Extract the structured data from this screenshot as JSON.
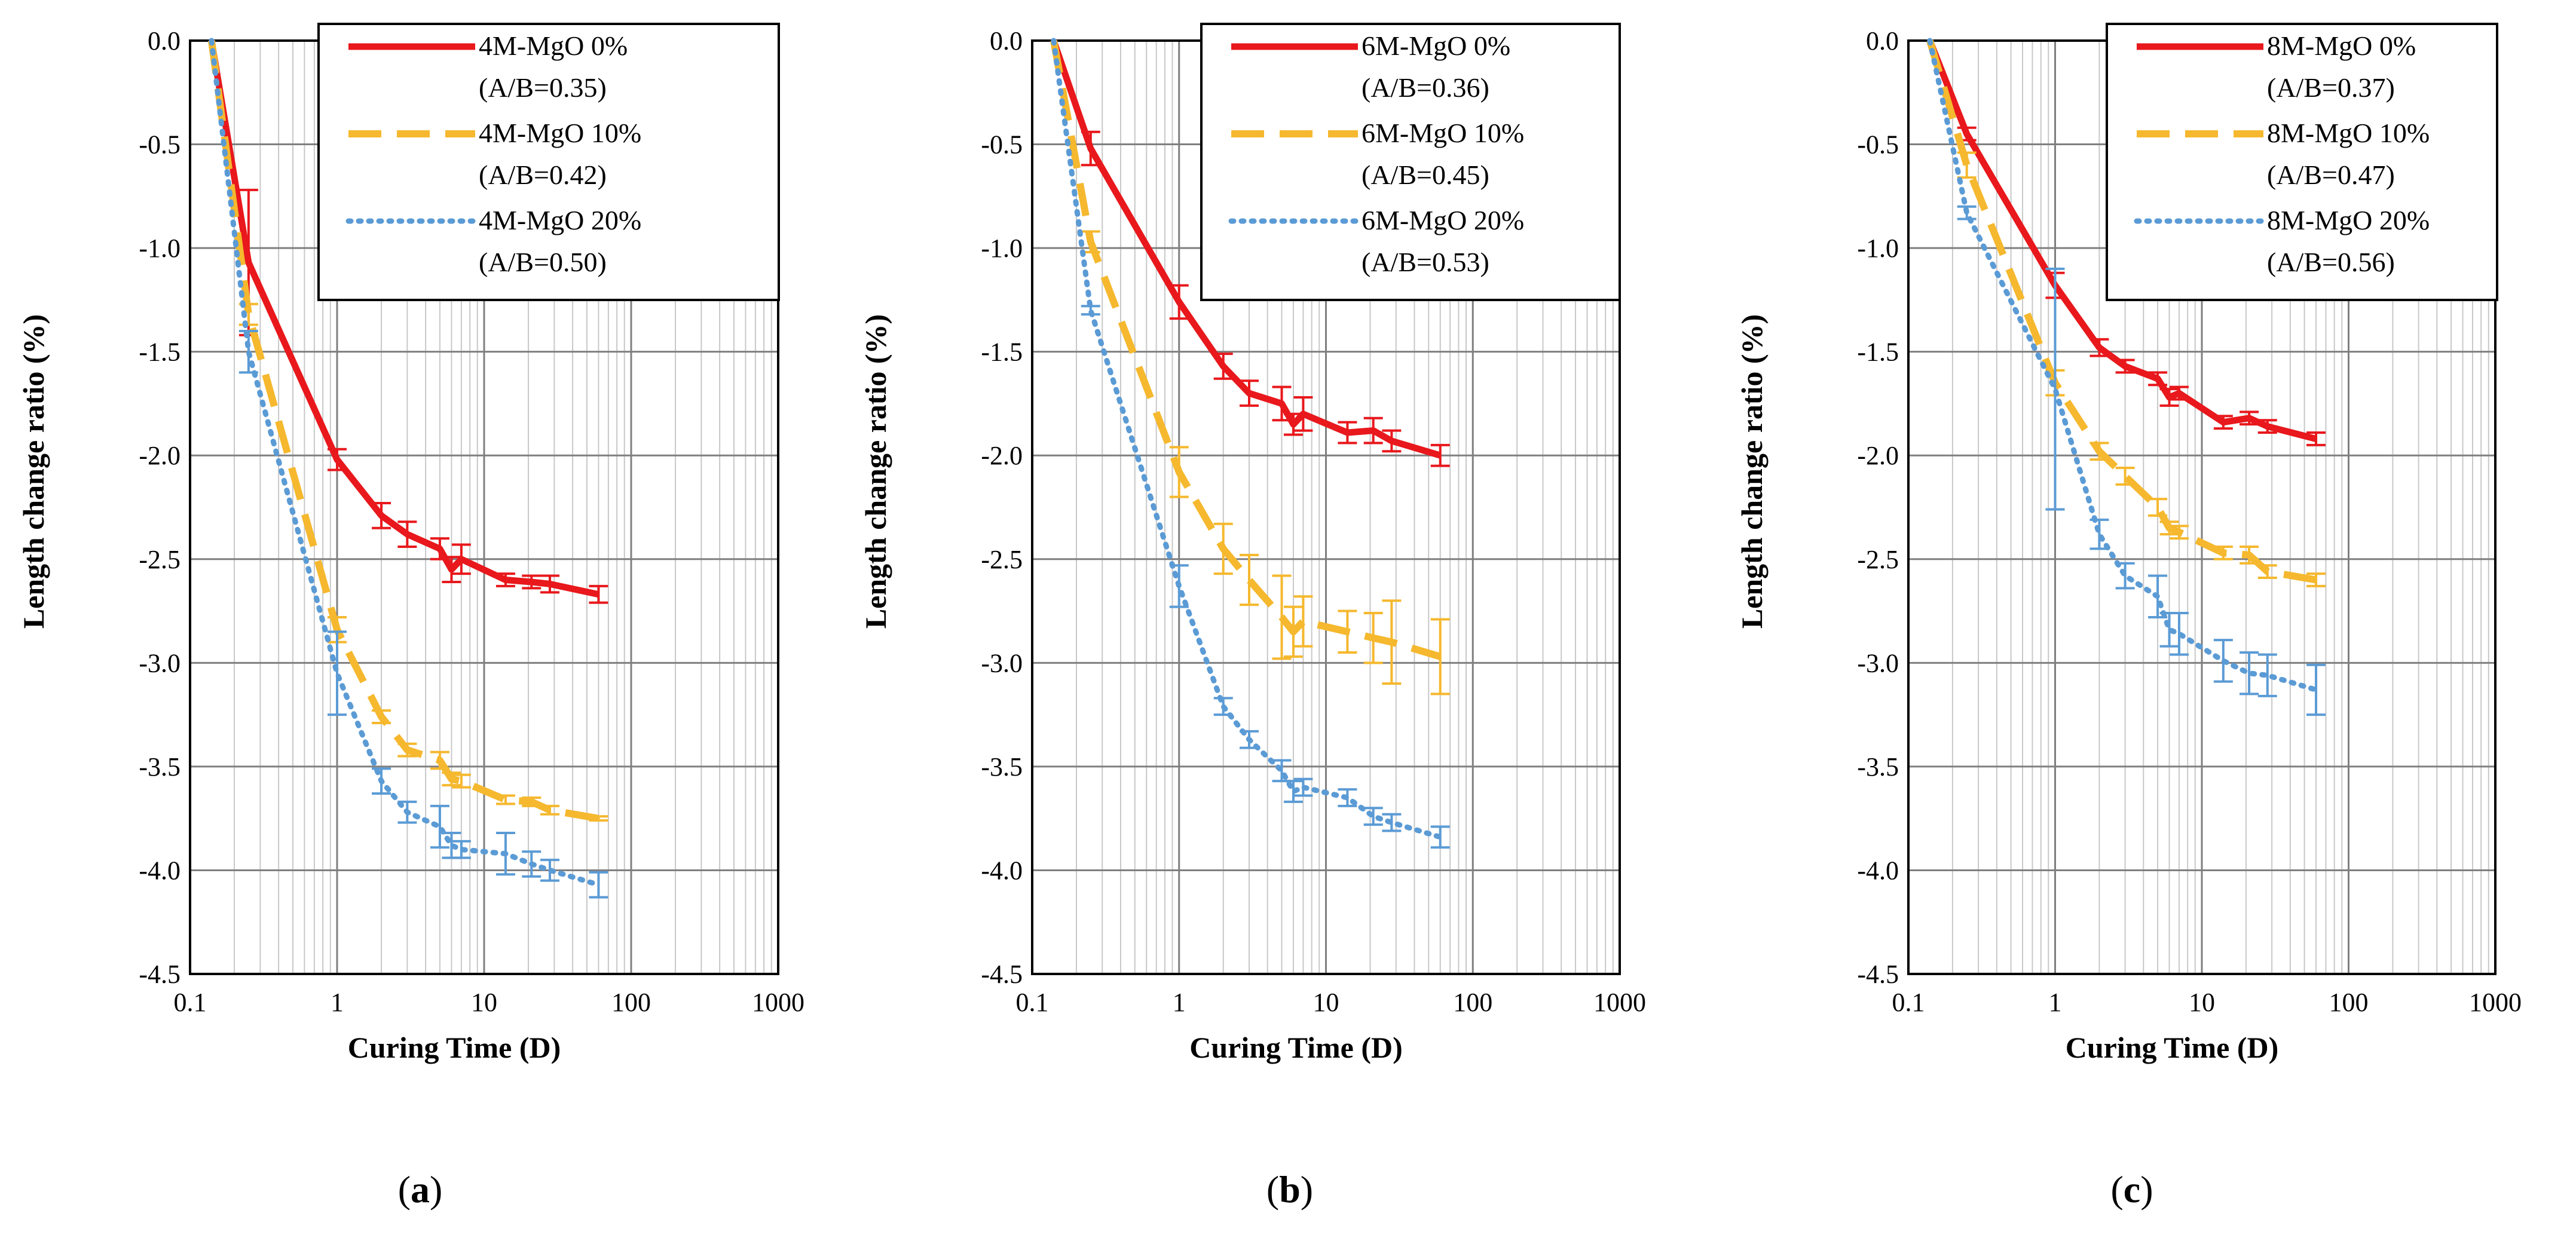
{
  "figure": {
    "panels": [
      {
        "caption": "a",
        "chart_data": {
          "type": "line",
          "xscale": "log",
          "xlim": [
            0.1,
            1000
          ],
          "ylim": [
            -4.5,
            0.0
          ],
          "xticks": [
            "0.1",
            "1",
            "10",
            "100",
            "1000"
          ],
          "yticks": [
            "0.0",
            "-0.5",
            "-1.0",
            "-1.5",
            "-2.0",
            "-2.5",
            "-3.0",
            "-3.5",
            "-4.0",
            "-4.5"
          ],
          "xlabel": "Curing Time (D)",
          "ylabel": "Length change ratio (%)",
          "grid": true,
          "legend_position": "top-right",
          "series": [
            {
              "name": "4M-MgO 0%",
              "sub": "(A/B=0.35)",
              "color": "#e8181c",
              "style": "solid",
              "x": [
                0.14,
                0.25,
                1,
                2,
                3,
                5,
                6,
                7,
                14,
                21,
                28,
                60
              ],
              "y": [
                0.0,
                -1.07,
                -2.02,
                -2.29,
                -2.38,
                -2.45,
                -2.55,
                -2.5,
                -2.6,
                -2.61,
                -2.62,
                -2.67
              ],
              "err": [
                0,
                0.35,
                0.05,
                0.06,
                0.06,
                0.05,
                0.06,
                0.07,
                0.03,
                0.03,
                0.04,
                0.04
              ]
            },
            {
              "name": "4M-MgO 10%",
              "sub": "(A/B=0.42)",
              "color": "#f5b82e",
              "style": "dashed",
              "x": [
                0.14,
                0.25,
                1,
                2,
                3,
                5,
                6,
                7,
                14,
                21,
                28,
                60
              ],
              "y": [
                0.0,
                -1.32,
                -2.84,
                -3.26,
                -3.42,
                -3.47,
                -3.56,
                -3.57,
                -3.66,
                -3.67,
                -3.71,
                -3.75
              ],
              "err": [
                0,
                0.05,
                0.06,
                0.03,
                0.03,
                0.04,
                0.03,
                0.03,
                0.02,
                0.02,
                0.02,
                0.01
              ]
            },
            {
              "name": "4M-MgO 20%",
              "sub": "(A/B=0.50)",
              "color": "#5b9bd5",
              "style": "dotted",
              "x": [
                0.14,
                0.25,
                1,
                2,
                3,
                5,
                6,
                7,
                14,
                21,
                28,
                60
              ],
              "y": [
                0.0,
                -1.5,
                -3.05,
                -3.57,
                -3.72,
                -3.79,
                -3.88,
                -3.9,
                -3.92,
                -3.97,
                -4.0,
                -4.07
              ],
              "err": [
                0,
                0.1,
                0.2,
                0.06,
                0.05,
                0.1,
                0.06,
                0.04,
                0.1,
                0.06,
                0.05,
                0.06
              ]
            }
          ]
        }
      },
      {
        "caption": "b",
        "chart_data": {
          "type": "line",
          "xscale": "log",
          "xlim": [
            0.1,
            1000
          ],
          "ylim": [
            -4.5,
            0.0
          ],
          "xticks": [
            "0.1",
            "1",
            "10",
            "100",
            "1000"
          ],
          "yticks": [
            "0.0",
            "-0.5",
            "-1.0",
            "-1.5",
            "-2.0",
            "-2.5",
            "-3.0",
            "-3.5",
            "-4.0",
            "-4.5"
          ],
          "xlabel": "Curing Time (D)",
          "ylabel": "Length change ratio (%)",
          "grid": true,
          "legend_position": "top-right",
          "series": [
            {
              "name": "6M-MgO 0%",
              "sub": "(A/B=0.36)",
              "color": "#e8181c",
              "style": "solid",
              "x": [
                0.14,
                0.25,
                1,
                2,
                3,
                5,
                6,
                7,
                14,
                21,
                28,
                60
              ],
              "y": [
                0.0,
                -0.52,
                -1.26,
                -1.57,
                -1.7,
                -1.75,
                -1.85,
                -1.8,
                -1.89,
                -1.88,
                -1.93,
                -2.0
              ],
              "err": [
                0,
                0.08,
                0.08,
                0.06,
                0.06,
                0.08,
                0.05,
                0.08,
                0.05,
                0.06,
                0.05,
                0.05
              ]
            },
            {
              "name": "6M-MgO 10%",
              "sub": "(A/B=0.45)",
              "color": "#f5b82e",
              "style": "dashed",
              "x": [
                0.14,
                0.25,
                1,
                2,
                3,
                5,
                6,
                7,
                14,
                21,
                28,
                60
              ],
              "y": [
                0.0,
                -0.97,
                -2.08,
                -2.45,
                -2.6,
                -2.78,
                -2.85,
                -2.8,
                -2.85,
                -2.88,
                -2.9,
                -2.97
              ],
              "err": [
                0,
                0.05,
                0.12,
                0.12,
                0.12,
                0.2,
                0.12,
                0.12,
                0.1,
                0.12,
                0.2,
                0.18
              ]
            },
            {
              "name": "6M-MgO 20%",
              "sub": "(A/B=0.53)",
              "color": "#5b9bd5",
              "style": "dotted",
              "x": [
                0.14,
                0.25,
                1,
                2,
                3,
                5,
                6,
                7,
                14,
                21,
                28,
                60
              ],
              "y": [
                0.0,
                -1.3,
                -2.63,
                -3.21,
                -3.37,
                -3.52,
                -3.62,
                -3.6,
                -3.65,
                -3.74,
                -3.77,
                -3.84
              ],
              "err": [
                0,
                0.02,
                0.1,
                0.04,
                0.04,
                0.05,
                0.05,
                0.04,
                0.04,
                0.04,
                0.04,
                0.05
              ]
            }
          ]
        }
      },
      {
        "caption": "c",
        "chart_data": {
          "type": "line",
          "xscale": "log",
          "xlim": [
            0.1,
            1000
          ],
          "ylim": [
            -4.5,
            0.0
          ],
          "xticks": [
            "0.1",
            "1",
            "10",
            "100",
            "1000"
          ],
          "yticks": [
            "0.0",
            "-0.5",
            "-1.0",
            "-1.5",
            "-2.0",
            "-2.5",
            "-3.0",
            "-3.5",
            "-4.0",
            "-4.5"
          ],
          "xlabel": "Curing Time (D)",
          "ylabel": "Length change ratio (%)",
          "grid": true,
          "legend_position": "top-right",
          "series": [
            {
              "name": "8M-MgO 0%",
              "sub": "(A/B=0.37)",
              "color": "#e8181c",
              "style": "solid",
              "x": [
                0.14,
                0.25,
                1,
                2,
                3,
                5,
                6,
                7,
                14,
                21,
                28,
                60
              ],
              "y": [
                0.0,
                -0.45,
                -1.18,
                -1.48,
                -1.57,
                -1.63,
                -1.72,
                -1.7,
                -1.84,
                -1.82,
                -1.86,
                -1.92
              ],
              "err": [
                0,
                0.03,
                0.06,
                0.04,
                0.03,
                0.03,
                0.04,
                0.03,
                0.03,
                0.03,
                0.03,
                0.03
              ]
            },
            {
              "name": "8M-MgO 10%",
              "sub": "(A/B=0.47)",
              "color": "#f5b82e",
              "style": "dashed",
              "x": [
                0.14,
                0.25,
                1,
                2,
                3,
                5,
                6,
                7,
                14,
                21,
                28,
                60
              ],
              "y": [
                0.0,
                -0.6,
                -1.65,
                -1.98,
                -2.1,
                -2.25,
                -2.35,
                -2.37,
                -2.47,
                -2.48,
                -2.56,
                -2.6
              ],
              "err": [
                0,
                0.06,
                0.06,
                0.04,
                0.04,
                0.04,
                0.03,
                0.03,
                0.03,
                0.04,
                0.03,
                0.03
              ]
            },
            {
              "name": "8M-MgO 20%",
              "sub": "(A/B=0.56)",
              "color": "#5b9bd5",
              "style": "dotted",
              "x": [
                0.14,
                0.25,
                1,
                2,
                3,
                5,
                6,
                7,
                14,
                21,
                28,
                60
              ],
              "y": [
                0.0,
                -0.83,
                -1.68,
                -2.38,
                -2.58,
                -2.68,
                -2.84,
                -2.86,
                -2.99,
                -3.05,
                -3.06,
                -3.13
              ],
              "err": [
                0,
                0.03,
                0.58,
                0.07,
                0.06,
                0.1,
                0.08,
                0.1,
                0.1,
                0.1,
                0.1,
                0.12
              ]
            }
          ]
        }
      }
    ]
  }
}
